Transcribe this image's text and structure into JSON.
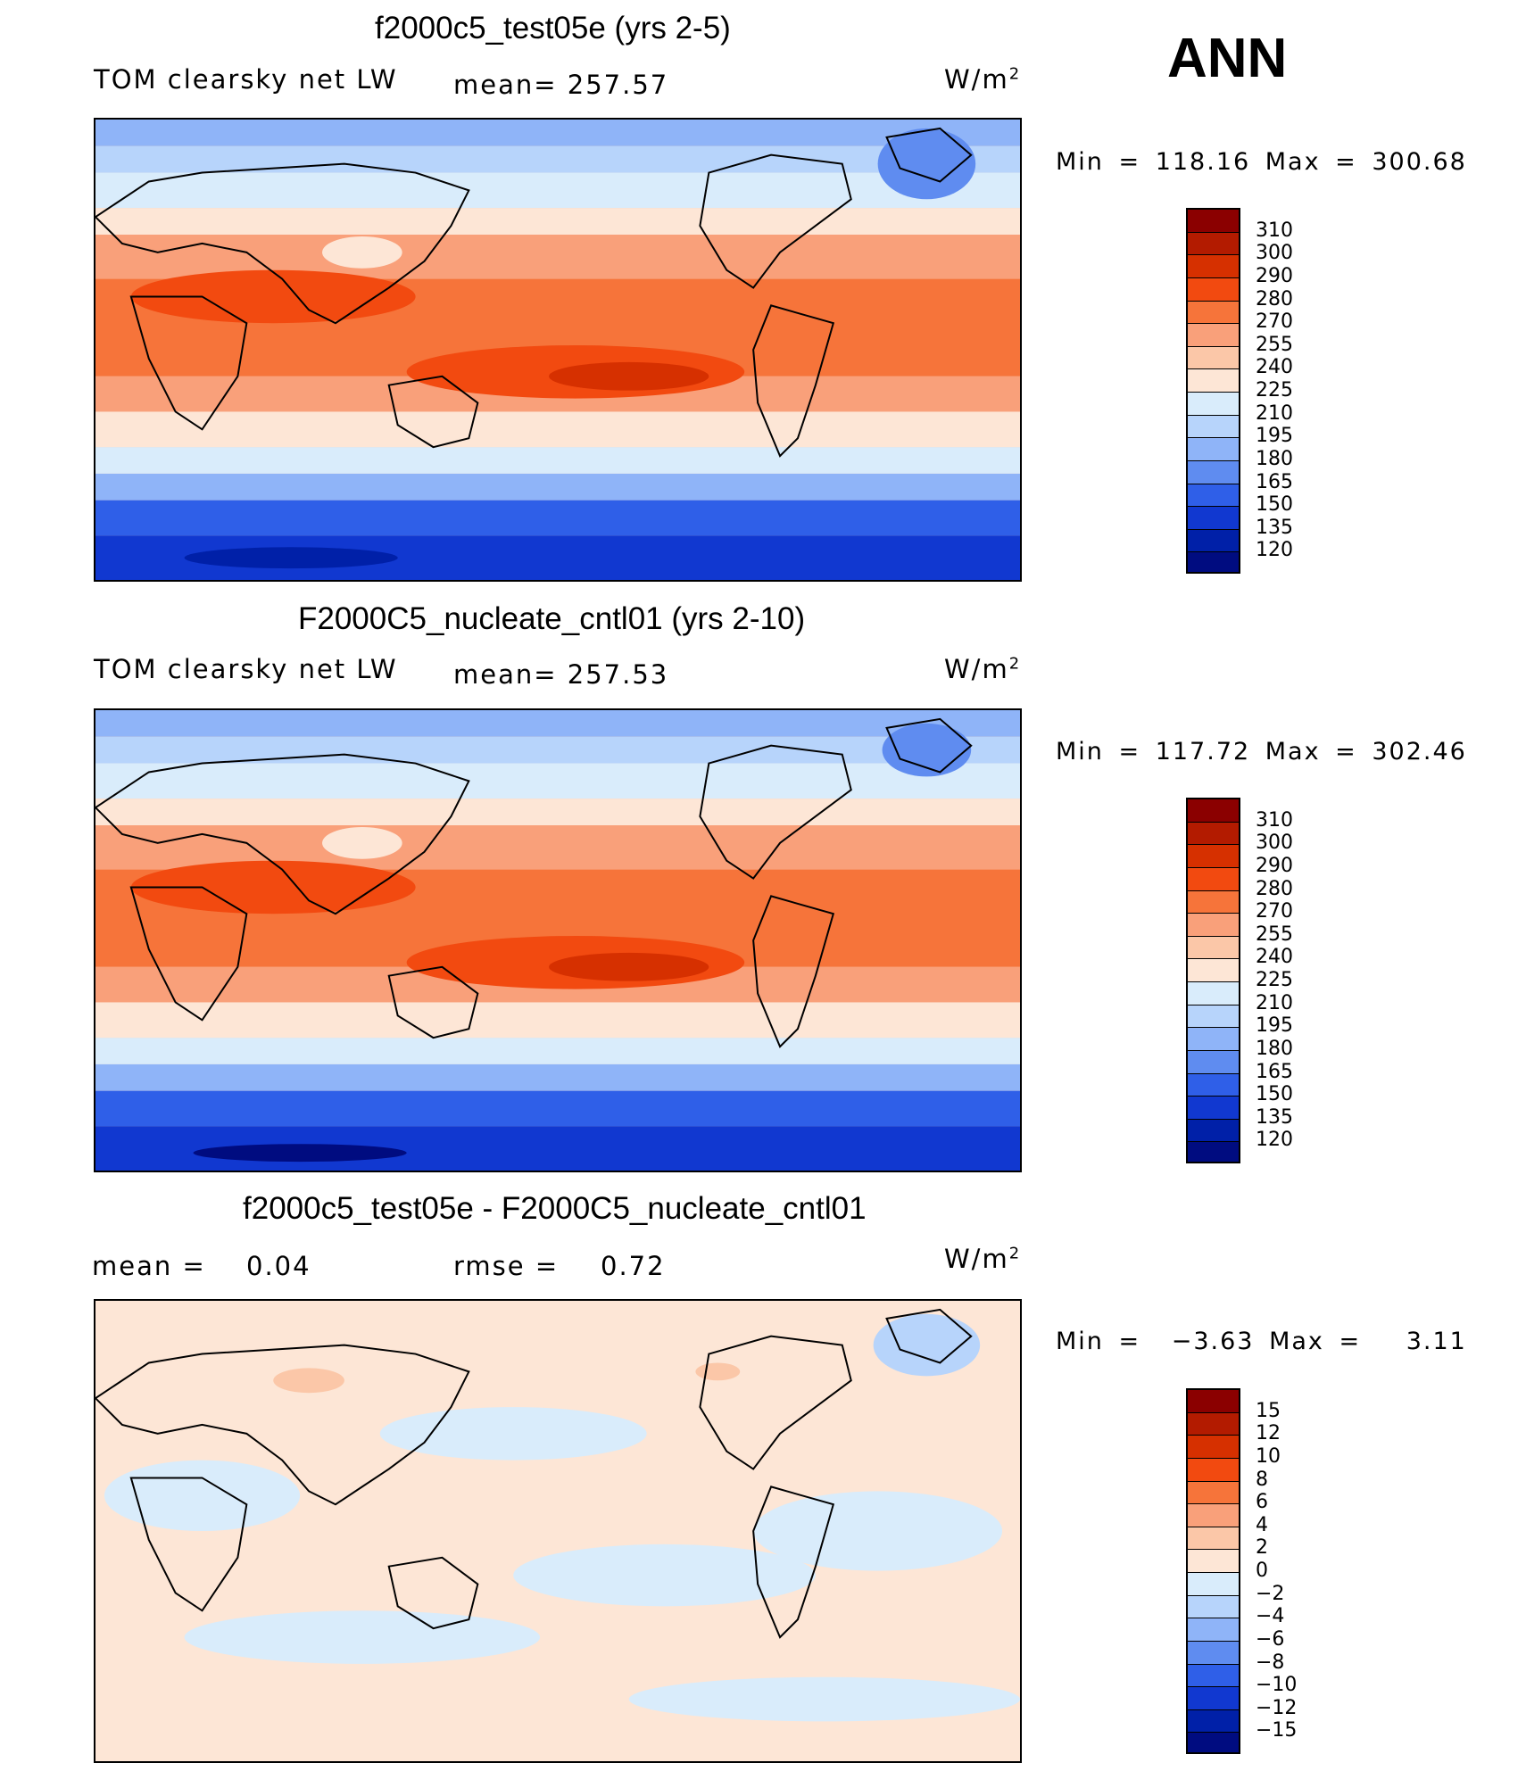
{
  "season": "ANN",
  "panels": [
    {
      "title": "f2000c5_test05e (yrs 2-5)",
      "left_label": "TOM clearsky net LW",
      "mid_label": "mean= 257.57",
      "units": "W/m",
      "units_sup": "2",
      "minmax": "Min = 118.16 Max = 300.68",
      "kind": "field"
    },
    {
      "title": "F2000C5_nucleate_cntl01 (yrs 2-10)",
      "left_label": "TOM clearsky net LW",
      "mid_label": "mean= 257.53",
      "units": "W/m",
      "units_sup": "2",
      "minmax": "Min = 117.72 Max = 302.46",
      "kind": "field"
    },
    {
      "title": "f2000c5_test05e - F2000C5_nucleate_cntl01",
      "left_label": "mean =",
      "left_value": "0.04",
      "mid_label": "rmse =",
      "mid_value": "0.72",
      "units": "W/m",
      "units_sup": "2",
      "minmax_left": "Min =",
      "minmax_min": "−3.63",
      "minmax_mid": "Max =",
      "minmax_max": "3.11",
      "kind": "diff"
    }
  ],
  "colorbars": {
    "field": {
      "ticks": [
        "310",
        "300",
        "290",
        "280",
        "270",
        "255",
        "240",
        "225",
        "210",
        "195",
        "180",
        "165",
        "150",
        "135",
        "120"
      ],
      "colors": [
        "#8b0000",
        "#b31b00",
        "#d63000",
        "#f24a10",
        "#f6743a",
        "#f9a07a",
        "#fbc7a8",
        "#fde6d6",
        "#d9ecfb",
        "#b7d4fb",
        "#8fb4f8",
        "#5f8cf0",
        "#2f5fe8",
        "#1138d0",
        "#0020a8",
        "#000c80"
      ]
    },
    "diff": {
      "ticks": [
        "15",
        "12",
        "10",
        "8",
        "6",
        "4",
        "2",
        "0",
        "−2",
        "−4",
        "−6",
        "−8",
        "−10",
        "−12",
        "−15"
      ],
      "colors": [
        "#8b0000",
        "#b31b00",
        "#d63000",
        "#f24a10",
        "#f6743a",
        "#f9a07a",
        "#fbc7a8",
        "#fde6d6",
        "#d9ecfb",
        "#b7d4fb",
        "#8fb4f8",
        "#5f8cf0",
        "#2f5fe8",
        "#1138d0",
        "#0020a8",
        "#000c80"
      ]
    }
  }
}
